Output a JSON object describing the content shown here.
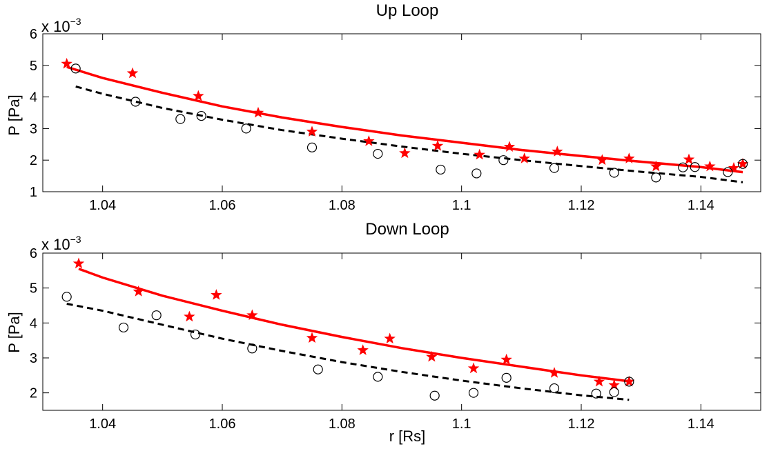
{
  "chart_data": [
    {
      "type": "scatter",
      "title": "Up Loop",
      "xlabel": "",
      "ylabel": "P [Pa]",
      "y_exponent_base": "x 10",
      "y_exponent_power": "−3",
      "xlim": [
        1.03,
        1.15
      ],
      "ylim": [
        1,
        6
      ],
      "xticks": [
        1.04,
        1.06,
        1.08,
        1.1,
        1.12,
        1.14
      ],
      "xtick_labels": [
        "1.04",
        "1.06",
        "1.08",
        "1.1",
        "1.12",
        "1.14"
      ],
      "yticks": [
        1,
        2,
        3,
        4,
        5,
        6
      ],
      "ytick_labels": [
        "1",
        "2",
        "3",
        "4",
        "5",
        "6"
      ],
      "series": [
        {
          "type": "scatter",
          "marker": "star",
          "color": "#ff0000",
          "x": [
            1.034,
            1.045,
            1.056,
            1.066,
            1.075,
            1.0845,
            1.0905,
            1.096,
            1.103,
            1.108,
            1.1105,
            1.116,
            1.1235,
            1.128,
            1.1325,
            1.138,
            1.1415,
            1.1455,
            1.147
          ],
          "y": [
            5.05,
            4.75,
            4.03,
            3.5,
            2.9,
            2.6,
            2.22,
            2.45,
            2.17,
            2.42,
            2.05,
            2.27,
            2.0,
            2.05,
            1.8,
            2.02,
            1.8,
            1.75,
            1.88
          ]
        },
        {
          "type": "scatter",
          "marker": "circle",
          "color": "#000000",
          "x": [
            1.0355,
            1.0455,
            1.053,
            1.0565,
            1.064,
            1.075,
            1.086,
            1.0965,
            1.1025,
            1.107,
            1.1155,
            1.1255,
            1.1325,
            1.137,
            1.139,
            1.1445,
            1.147
          ],
          "y": [
            4.9,
            3.85,
            3.3,
            3.4,
            3.0,
            2.4,
            2.2,
            1.7,
            1.58,
            2.0,
            1.75,
            1.6,
            1.45,
            1.77,
            1.78,
            1.62,
            1.88
          ]
        },
        {
          "type": "line",
          "style": "solid",
          "color": "#ff0000",
          "x": [
            1.034,
            1.04,
            1.05,
            1.06,
            1.07,
            1.08,
            1.09,
            1.1,
            1.11,
            1.12,
            1.13,
            1.14,
            1.147
          ],
          "y": [
            4.95,
            4.6,
            4.13,
            3.7,
            3.35,
            3.05,
            2.78,
            2.55,
            2.32,
            2.13,
            1.95,
            1.78,
            1.62
          ]
        },
        {
          "type": "line",
          "style": "dashed",
          "color": "#000000",
          "x": [
            1.0355,
            1.04,
            1.05,
            1.06,
            1.07,
            1.08,
            1.09,
            1.1,
            1.11,
            1.12,
            1.13,
            1.14,
            1.147
          ],
          "y": [
            4.33,
            4.1,
            3.65,
            3.28,
            2.95,
            2.68,
            2.43,
            2.2,
            2.0,
            1.81,
            1.63,
            1.47,
            1.3
          ]
        }
      ]
    },
    {
      "type": "scatter",
      "title": "Down Loop",
      "xlabel": "r [Rs]",
      "ylabel": "P [Pa]",
      "y_exponent_base": "x 10",
      "y_exponent_power": "−3",
      "xlim": [
        1.03,
        1.15
      ],
      "ylim": [
        1.5,
        6
      ],
      "xticks": [
        1.04,
        1.06,
        1.08,
        1.1,
        1.12,
        1.14
      ],
      "xtick_labels": [
        "1.04",
        "1.06",
        "1.08",
        "1.1",
        "1.12",
        "1.14"
      ],
      "yticks": [
        2,
        3,
        4,
        5,
        6
      ],
      "ytick_labels": [
        "2",
        "3",
        "4",
        "5",
        "6"
      ],
      "series": [
        {
          "type": "scatter",
          "marker": "star",
          "color": "#ff0000",
          "x": [
            1.036,
            1.046,
            1.0545,
            1.059,
            1.065,
            1.075,
            1.0835,
            1.088,
            1.095,
            1.102,
            1.1075,
            1.1155,
            1.123,
            1.1255,
            1.128
          ],
          "y": [
            5.7,
            4.9,
            4.18,
            4.8,
            4.22,
            3.57,
            3.22,
            3.55,
            3.03,
            2.7,
            2.95,
            2.57,
            2.32,
            2.22,
            2.32
          ]
        },
        {
          "type": "scatter",
          "marker": "circle",
          "color": "#000000",
          "x": [
            1.034,
            1.0435,
            1.049,
            1.0555,
            1.065,
            1.076,
            1.086,
            1.0955,
            1.102,
            1.1075,
            1.1155,
            1.1225,
            1.1255,
            1.128
          ],
          "y": [
            4.75,
            3.87,
            4.22,
            3.67,
            3.27,
            2.67,
            2.46,
            1.92,
            2.0,
            2.43,
            2.13,
            1.98,
            2.02,
            2.32
          ]
        },
        {
          "type": "line",
          "style": "solid",
          "color": "#ff0000",
          "x": [
            1.036,
            1.04,
            1.05,
            1.06,
            1.07,
            1.08,
            1.09,
            1.1,
            1.11,
            1.12,
            1.128
          ],
          "y": [
            5.55,
            5.3,
            4.78,
            4.35,
            3.95,
            3.6,
            3.28,
            3.0,
            2.75,
            2.5,
            2.33
          ]
        },
        {
          "type": "line",
          "style": "dashed",
          "color": "#000000",
          "x": [
            1.034,
            1.04,
            1.05,
            1.06,
            1.07,
            1.08,
            1.09,
            1.1,
            1.11,
            1.12,
            1.128
          ],
          "y": [
            4.55,
            4.35,
            3.95,
            3.55,
            3.2,
            2.88,
            2.6,
            2.35,
            2.13,
            1.93,
            1.8
          ]
        }
      ]
    }
  ]
}
